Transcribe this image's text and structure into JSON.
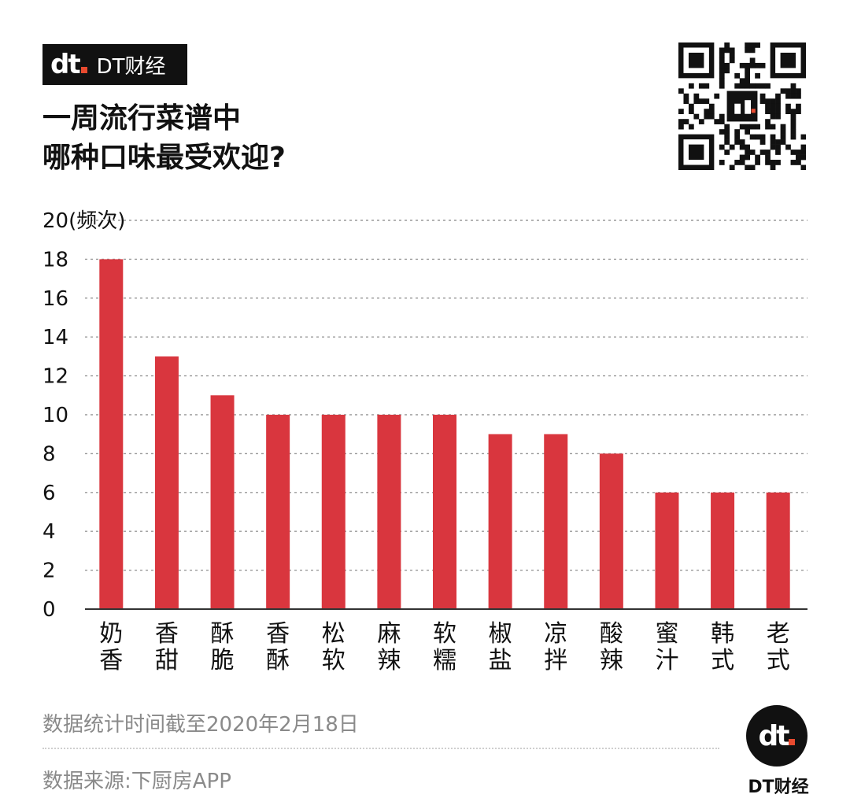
{
  "brand": {
    "mark": "dt",
    "name": "DT财经"
  },
  "title_lines": [
    "一周流行菜谱中",
    "哪种口味最受欢迎?"
  ],
  "chart_data": {
    "type": "bar",
    "categories": [
      [
        "奶",
        "香"
      ],
      [
        "香",
        "甜"
      ],
      [
        "酥",
        "脆"
      ],
      [
        "香",
        "酥"
      ],
      [
        "松",
        "软"
      ],
      [
        "麻",
        "辣"
      ],
      [
        "软",
        "糯"
      ],
      [
        "椒",
        "盐"
      ],
      [
        "凉",
        "拌"
      ],
      [
        "酸",
        "辣"
      ],
      [
        "蜜",
        "汁"
      ],
      [
        "韩",
        "式"
      ],
      [
        "老",
        "式"
      ]
    ],
    "values": [
      18,
      13,
      11,
      10,
      10,
      10,
      10,
      9,
      9,
      8,
      6,
      6,
      6
    ],
    "ylim": [
      0,
      20
    ],
    "yticks": [
      0,
      2,
      4,
      6,
      8,
      10,
      12,
      14,
      16,
      18,
      20
    ],
    "top_tick_label": "20(频次)",
    "grid": true,
    "bar_color": "#d9363e"
  },
  "footer": {
    "date_note": "数据统计时间截至2020年2月18日",
    "source": "数据来源:下厨房APP"
  },
  "logo": {
    "mark": "dt",
    "name": "DT财经"
  },
  "colors": {
    "accent": "#e84a2f",
    "bar": "#d9363e",
    "dark": "#111111"
  }
}
